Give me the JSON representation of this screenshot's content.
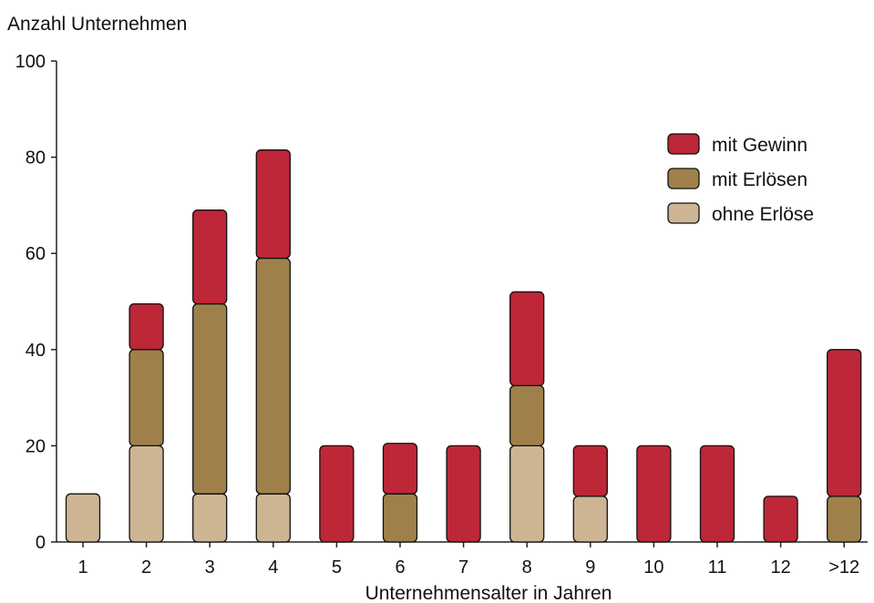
{
  "chart_data": {
    "type": "bar",
    "stacked": true,
    "title": "",
    "ylabel": "Anzahl Unternehmen",
    "xlabel": "Unternehmensalter in Jahren",
    "ylim": [
      0,
      100
    ],
    "yticks": [
      0,
      20,
      40,
      60,
      80,
      100
    ],
    "grid": false,
    "legend_position": "top-right",
    "categories": [
      "1",
      "2",
      "3",
      "4",
      "5",
      "6",
      "7",
      "8",
      "9",
      "10",
      "11",
      "12",
      ">12"
    ],
    "series": [
      {
        "name": "ohne Erlöse",
        "color": "#cdb593",
        "values": [
          10,
          20,
          10,
          10,
          0,
          0,
          0,
          20,
          9.5,
          0,
          0,
          0,
          0
        ]
      },
      {
        "name": "mit Erlösen",
        "color": "#a0804a",
        "values": [
          0,
          20,
          39.5,
          49,
          0,
          10,
          0,
          12.5,
          0,
          0,
          0,
          0,
          9.5
        ]
      },
      {
        "name": "mit Gewinn",
        "color": "#bd2737",
        "values": [
          0,
          9.5,
          19.5,
          22.5,
          20,
          10.5,
          20,
          19.5,
          10.5,
          20,
          20,
          9.5,
          30.5
        ]
      }
    ],
    "legend_order": [
      "mit Gewinn",
      "mit Erlösen",
      "ohne Erlöse"
    ]
  }
}
